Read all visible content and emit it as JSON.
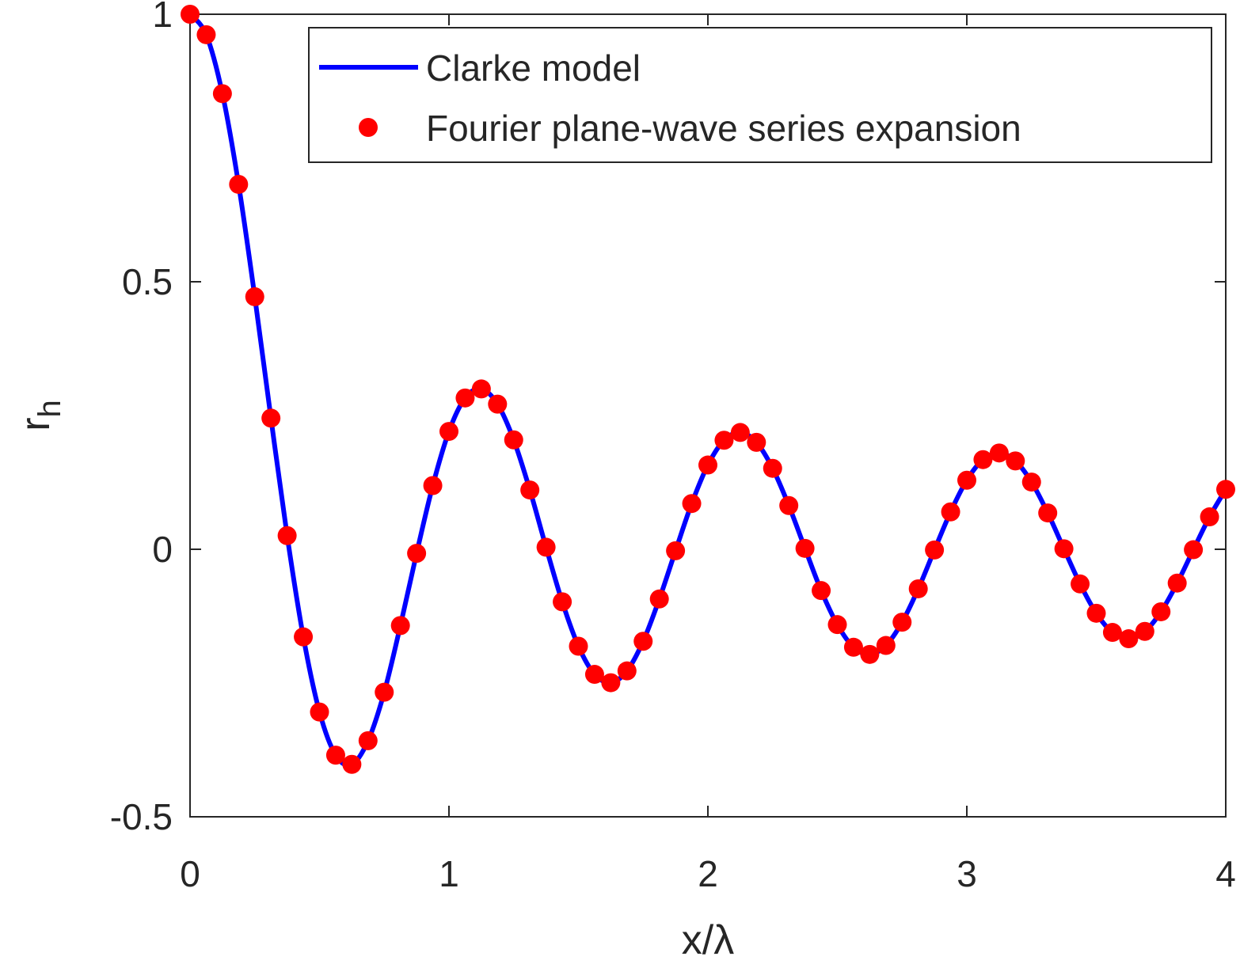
{
  "chart_data": {
    "type": "line",
    "xlabel": "x/λ",
    "ylabel": "r",
    "ylabel_subscript": "h",
    "x": [
      0,
      0.0625,
      0.125,
      0.1875,
      0.25,
      0.3125,
      0.375,
      0.4375,
      0.5,
      0.5625,
      0.625,
      0.6875,
      0.75,
      0.8125,
      0.875,
      0.9375,
      1,
      1.0625,
      1.125,
      1.1875,
      1.25,
      1.3125,
      1.375,
      1.4375,
      1.5,
      1.5625,
      1.625,
      1.6875,
      1.75,
      1.8125,
      1.875,
      1.9375,
      2,
      2.0625,
      2.125,
      2.1875,
      2.25,
      2.3125,
      2.375,
      2.4375,
      2.5,
      2.5625,
      2.625,
      2.6875,
      2.75,
      2.8125,
      2.875,
      2.9375,
      3,
      3.0625,
      3.125,
      3.1875,
      3.25,
      3.3125,
      3.375,
      3.4375,
      3.5,
      3.5625,
      3.625,
      3.6875,
      3.75,
      3.8125,
      3.875,
      3.9375,
      4
    ],
    "series": [
      {
        "name": "Clarke model",
        "color": "#0000ff",
        "mode": "line",
        "values": [
          1,
          0.9618,
          0.8516,
          0.682,
          0.472,
          0.2451,
          0.0255,
          -0.1637,
          -0.3042,
          -0.3848,
          -0.402,
          -0.3578,
          -0.2672,
          -0.1426,
          -0.0076,
          0.1191,
          0.2203,
          0.2828,
          0.2997,
          0.2713,
          0.2045,
          0.1108,
          0.0038,
          -0.0982,
          -0.1812,
          -0.2338,
          -0.2494,
          -0.2273,
          -0.172,
          -0.0929,
          -0.0028,
          0.0855,
          0.1575,
          0.2038,
          0.2183,
          0.1999,
          0.1513,
          0.0817,
          0.0017,
          -0.0772,
          -0.1408,
          -0.1831,
          -0.1965,
          -0.1798,
          -0.1363,
          -0.0739,
          -0.0013,
          0.0699,
          0.1291,
          0.1676,
          0.18,
          0.1651,
          0.1256,
          0.0679,
          0.001,
          -0.0648,
          -0.1196,
          -0.1554,
          -0.1672,
          -0.1535,
          -0.1168,
          -0.0632,
          -0.0008,
          0.0606,
          0.112
        ]
      },
      {
        "name": "Fourier plane-wave series expansion",
        "color": "#ff0000",
        "mode": "markers",
        "values": [
          1,
          0.9618,
          0.8516,
          0.682,
          0.472,
          0.2451,
          0.0255,
          -0.1637,
          -0.3042,
          -0.3848,
          -0.402,
          -0.3578,
          -0.2672,
          -0.1426,
          -0.0076,
          0.1191,
          0.2203,
          0.2828,
          0.2997,
          0.2713,
          0.2045,
          0.1108,
          0.0038,
          -0.0982,
          -0.1812,
          -0.2338,
          -0.2494,
          -0.2273,
          -0.172,
          -0.0929,
          -0.0028,
          0.0855,
          0.1575,
          0.2038,
          0.2183,
          0.1999,
          0.1513,
          0.0817,
          0.0017,
          -0.0772,
          -0.1408,
          -0.1831,
          -0.1965,
          -0.1798,
          -0.1363,
          -0.0739,
          -0.0013,
          0.0699,
          0.1291,
          0.1676,
          0.18,
          0.1651,
          0.1256,
          0.0679,
          0.001,
          -0.0648,
          -0.1196,
          -0.1554,
          -0.1672,
          -0.1535,
          -0.1168,
          -0.0632,
          -0.0008,
          0.0606,
          0.112
        ]
      }
    ],
    "xlim": [
      0,
      4
    ],
    "xticks": [
      0,
      1,
      2,
      3,
      4
    ],
    "ylim": [
      -0.5,
      1
    ],
    "yticks": [
      -0.5,
      0,
      0.5,
      1
    ],
    "legend": "upper right",
    "grid": false
  }
}
